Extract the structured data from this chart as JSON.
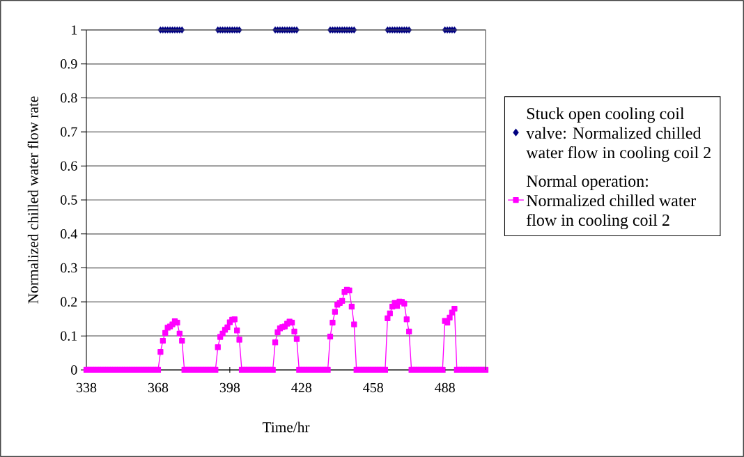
{
  "chart_data": {
    "type": "line",
    "xlabel": "Time/hr",
    "ylabel": "Normalized chilled water flow rate",
    "x": [
      338,
      339,
      340,
      341,
      342,
      343,
      344,
      345,
      346,
      347,
      348,
      349,
      350,
      351,
      352,
      353,
      354,
      355,
      356,
      357,
      358,
      359,
      360,
      361,
      362,
      363,
      364,
      365,
      366,
      367,
      368,
      369,
      370,
      371,
      372,
      373,
      374,
      375,
      376,
      377,
      378,
      379,
      380,
      381,
      382,
      383,
      384,
      385,
      386,
      387,
      388,
      389,
      390,
      391,
      392,
      393,
      394,
      395,
      396,
      397,
      398,
      399,
      400,
      401,
      402,
      403,
      404,
      405,
      406,
      407,
      408,
      409,
      410,
      411,
      412,
      413,
      414,
      415,
      416,
      417,
      418,
      419,
      420,
      421,
      422,
      423,
      424,
      425,
      426,
      427,
      428,
      429,
      430,
      431,
      432,
      433,
      434,
      435,
      436,
      437,
      438,
      439,
      440,
      441,
      442,
      443,
      444,
      445,
      446,
      447,
      448,
      449,
      450,
      451,
      452,
      453,
      454,
      455,
      456,
      457,
      458,
      459,
      460,
      461,
      462,
      463,
      464,
      465,
      466,
      467,
      468,
      469,
      470,
      471,
      472,
      473,
      474,
      475,
      476,
      477,
      478,
      479,
      480,
      481,
      482,
      483,
      484,
      485,
      486,
      487,
      488,
      489,
      490,
      491,
      492,
      493,
      494,
      495,
      496,
      497,
      498,
      499,
      500,
      501,
      502,
      503,
      504,
      505
    ],
    "series": [
      {
        "name": "Stuck open cooling coil valve: Normalized chilled water flow in cooling coil 2",
        "type": "scatter",
        "marker": "diamond",
        "color": "#000080",
        "x": [
          369,
          370,
          371,
          372,
          373,
          374,
          375,
          376,
          377,
          378,
          393,
          394,
          395,
          396,
          397,
          398,
          399,
          400,
          401,
          402,
          417,
          418,
          419,
          420,
          421,
          422,
          423,
          424,
          425,
          426,
          440,
          441,
          442,
          443,
          444,
          445,
          446,
          447,
          448,
          449,
          450,
          464,
          465,
          466,
          467,
          468,
          469,
          470,
          471,
          472,
          473,
          488,
          489,
          490,
          491,
          492
        ],
        "values": [
          1,
          1,
          1,
          1,
          1,
          1,
          1,
          1,
          1,
          1,
          1,
          1,
          1,
          1,
          1,
          1,
          1,
          1,
          1,
          1,
          1,
          1,
          1,
          1,
          1,
          1,
          1,
          1,
          1,
          1,
          1,
          1,
          1,
          1,
          1,
          1,
          1,
          1,
          1,
          1,
          1,
          1,
          1,
          1,
          1,
          1,
          1,
          1,
          1,
          1,
          1,
          1,
          1,
          1,
          1,
          1
        ]
      },
      {
        "name": "Normal operation: Normalized chilled water flow in cooling coil 2",
        "marker": "square",
        "color": "#ff00ff",
        "values": [
          0,
          0,
          0,
          0,
          0,
          0,
          0,
          0,
          0,
          0,
          0,
          0,
          0,
          0,
          0,
          0,
          0,
          0,
          0,
          0,
          0,
          0,
          0,
          0,
          0,
          0,
          0,
          0,
          0,
          0,
          0,
          0.053,
          0.086,
          0.109,
          0.124,
          0.128,
          0.134,
          0.143,
          0.139,
          0.107,
          0.086,
          0,
          0,
          0,
          0,
          0,
          0,
          0,
          0,
          0,
          0,
          0,
          0,
          0,
          0,
          0.067,
          0.097,
          0.107,
          0.118,
          0.125,
          0.14,
          0.148,
          0.149,
          0.116,
          0.089,
          0,
          0,
          0,
          0,
          0,
          0,
          0,
          0,
          0,
          0,
          0,
          0,
          0,
          0,
          0.081,
          0.111,
          0.122,
          0.126,
          0.128,
          0.136,
          0.142,
          0.139,
          0.113,
          0.091,
          0,
          0,
          0,
          0,
          0,
          0,
          0,
          0,
          0,
          0,
          0,
          0,
          0,
          0.098,
          0.139,
          0.171,
          0.192,
          0.197,
          0.203,
          0.229,
          0.236,
          0.234,
          0.186,
          0.134,
          0,
          0,
          0,
          0,
          0,
          0,
          0,
          0,
          0,
          0,
          0,
          0,
          0,
          0.152,
          0.166,
          0.186,
          0.197,
          0.188,
          0.201,
          0.2,
          0.195,
          0.149,
          0.113,
          0,
          0,
          0,
          0,
          0,
          0,
          0,
          0,
          0,
          0,
          0,
          0,
          0,
          0,
          0.144,
          0.139,
          0.154,
          0.169,
          0.18,
          0,
          0,
          0,
          0,
          0,
          0,
          0,
          0,
          0,
          0,
          0,
          0,
          0
        ]
      }
    ],
    "xlim": [
      338,
      505
    ],
    "ylim": [
      0,
      1
    ],
    "xticks": [
      338,
      368,
      398,
      428,
      458,
      488
    ],
    "yticks": [
      0,
      0.1,
      0.2,
      0.3,
      0.4,
      0.5,
      0.6,
      0.7,
      0.8,
      0.9,
      1
    ],
    "grid": "y",
    "legend": "right"
  }
}
